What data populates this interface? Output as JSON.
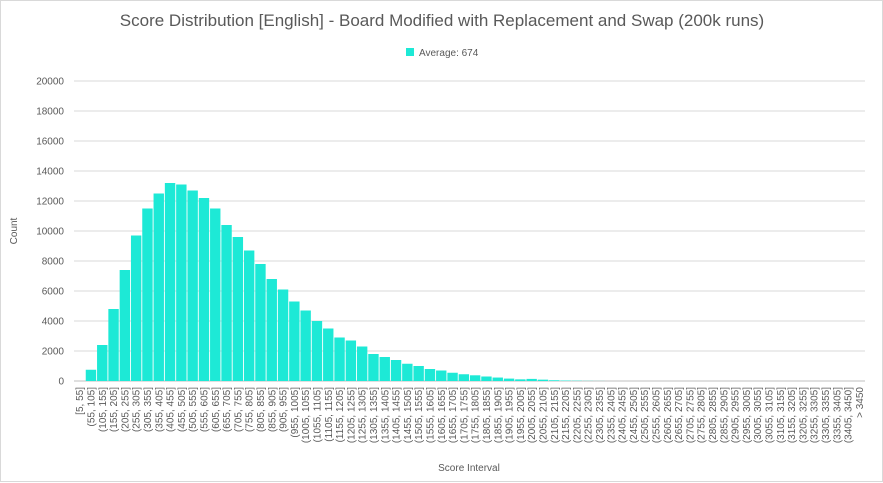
{
  "chart_data": {
    "type": "bar",
    "title": "Score Distribution [English] - Board Modified with Replacement and Swap (200k runs)",
    "xlabel": "Score Interval",
    "ylabel": "Count",
    "ylim": [
      0,
      20000
    ],
    "yticks": [
      "0",
      "2000",
      "4000",
      "6000",
      "8000",
      "10000",
      "12000",
      "14000",
      "16000",
      "18000",
      "20000"
    ],
    "legend_position": "top-center",
    "grid": true,
    "colors": {
      "bar": "#1de9d6",
      "grid": "#d9d9d9",
      "axis": "#bfbfbf",
      "text": "#595959"
    },
    "series": [
      {
        "name": "Average: 674"
      }
    ],
    "categories": [
      "[5, 55]",
      "(55, 105]",
      "(105, 155]",
      "(155, 205]",
      "(205, 255]",
      "(255, 305]",
      "(305, 355]",
      "(355, 405]",
      "(405, 455]",
      "(455, 505]",
      "(505, 555]",
      "(555, 605]",
      "(605, 655]",
      "(655, 705]",
      "(705, 755]",
      "(755, 805]",
      "(805, 855]",
      "(855, 905]",
      "(905, 955]",
      "(955, 1005]",
      "(1005, 1055]",
      "(1055, 1105]",
      "(1105, 1155]",
      "(1155, 1205]",
      "(1205, 1255]",
      "(1255, 1305]",
      "(1305, 1355]",
      "(1355, 1405]",
      "(1405, 1455]",
      "(1455, 1505]",
      "(1505, 1555]",
      "(1555, 1605]",
      "(1605, 1655]",
      "(1655, 1705]",
      "(1705, 1755]",
      "(1755, 1805]",
      "(1805, 1855]",
      "(1855, 1905]",
      "(1905, 1955]",
      "(1955, 2005]",
      "(2005, 2055]",
      "(2055, 2105]",
      "(2105, 2155]",
      "(2155, 2205]",
      "(2205, 2255]",
      "(2255, 2305]",
      "(2305, 2355]",
      "(2355, 2405]",
      "(2405, 2455]",
      "(2455, 2505]",
      "(2505, 2555]",
      "(2555, 2605]",
      "(2605, 2655]",
      "(2655, 2705]",
      "(2705, 2755]",
      "(2755, 2805]",
      "(2805, 2855]",
      "(2855, 2905]",
      "(2905, 2955]",
      "(2955, 3005]",
      "(3005, 3055]",
      "(3055, 3105]",
      "(3105, 3155]",
      "(3155, 3205]",
      "(3205, 3255]",
      "(3255, 3305]",
      "(3305, 3355]",
      "(3355, 3405]",
      "(3405, 3450]",
      "> 3450"
    ],
    "values": [
      0,
      750,
      2400,
      4800,
      7400,
      9700,
      11500,
      12500,
      13200,
      13100,
      12700,
      12200,
      11500,
      10400,
      9600,
      8700,
      7800,
      6800,
      6100,
      5300,
      4700,
      4000,
      3500,
      2900,
      2700,
      2300,
      1800,
      1600,
      1400,
      1150,
      1000,
      800,
      700,
      550,
      450,
      380,
      300,
      230,
      160,
      110,
      140,
      90,
      50,
      30,
      20,
      10,
      5,
      0,
      0,
      0,
      0,
      0,
      0,
      0,
      0,
      0,
      0,
      0,
      0,
      0,
      0,
      0,
      0,
      0,
      0,
      0,
      0,
      0,
      0,
      0
    ]
  }
}
